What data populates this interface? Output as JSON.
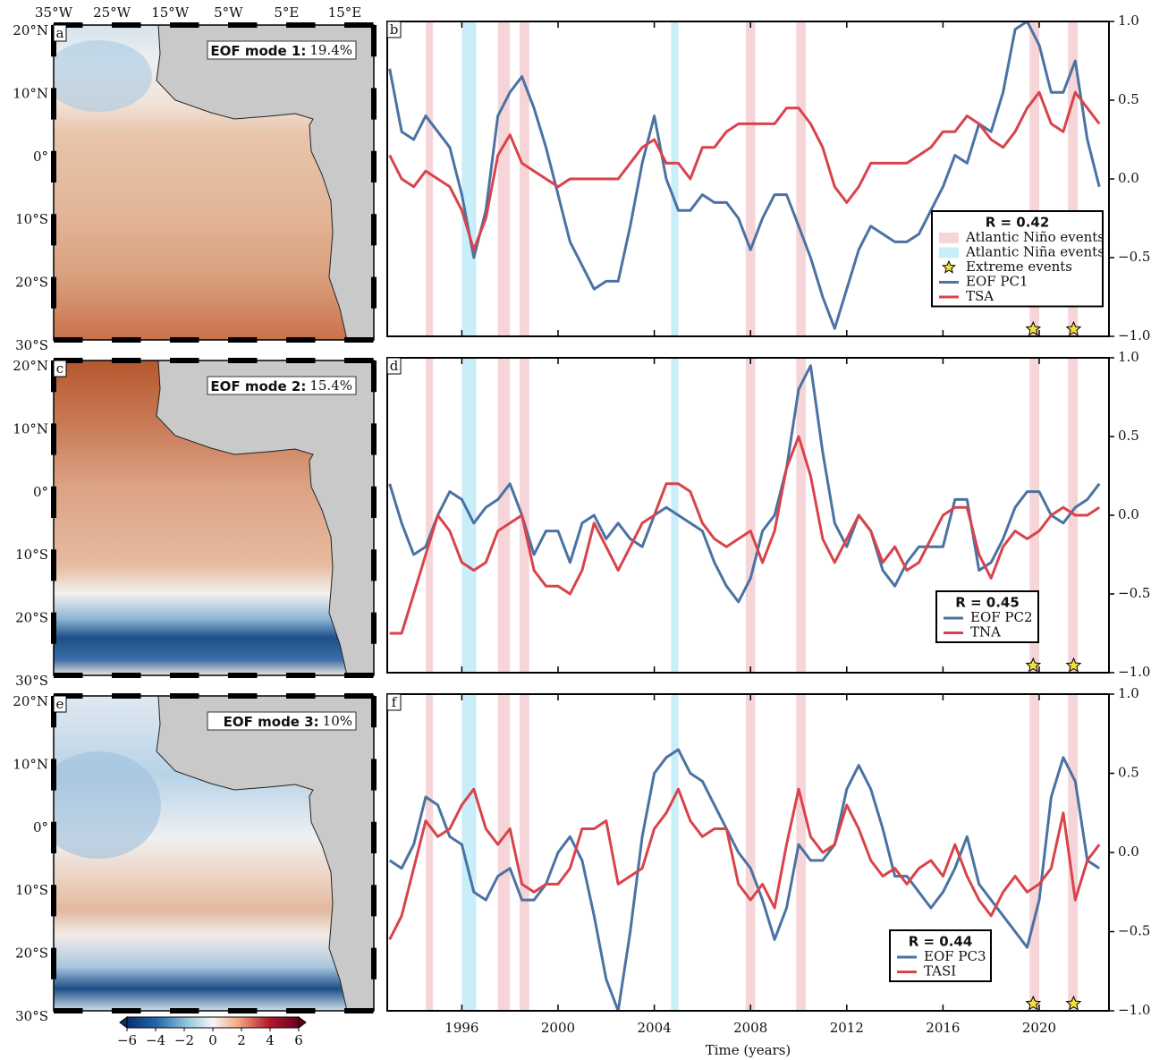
{
  "maps": {
    "lon_labels": [
      "35°W",
      "25°W",
      "15°W",
      "5°W",
      "5°E",
      "15°E"
    ],
    "lat_labels": [
      "20°N",
      "10°N",
      "0°",
      "10°S",
      "20°S",
      "30°S"
    ],
    "panels": [
      {
        "letter": "a",
        "title": "EOF mode 1:",
        "variance": "19.4%"
      },
      {
        "letter": "c",
        "title": "EOF mode 2:",
        "variance": "15.4%"
      },
      {
        "letter": "e",
        "title": "EOF mode 3:",
        "variance": "10%"
      }
    ],
    "colorbar": {
      "lim": [
        -6,
        6
      ],
      "ticks": [
        {
          "value": -6,
          "label": "−6"
        },
        {
          "value": -4,
          "label": "−4"
        },
        {
          "value": -2,
          "label": "−2"
        },
        0,
        2,
        4,
        6
      ]
    }
  },
  "events": {
    "nino": {
      "name": "Atlantic Niño events",
      "color": "#f6d5d8",
      "spans": [
        [
          1994.5,
          1994.8
        ],
        [
          1997.5,
          1998.0
        ],
        [
          1998.4,
          1998.8
        ],
        [
          2007.8,
          2008.2
        ],
        [
          2009.9,
          2010.3
        ],
        [
          2019.6,
          2020.0
        ],
        [
          2021.2,
          2021.6
        ]
      ]
    },
    "nina": {
      "name": "Atlantic Niña events",
      "color": "#c8eefa",
      "spans": [
        [
          1996.0,
          1996.6
        ],
        [
          2004.7,
          2005.0
        ]
      ]
    },
    "extreme": {
      "name": "Extreme events",
      "color": "#f5e03b",
      "x": [
        2019.75,
        2021.43
      ]
    }
  },
  "chart_data": [
    {
      "type": "line",
      "panel": "b",
      "annotation": "R = 0.42",
      "xlim": [
        1992.9,
        2022.9
      ],
      "ylim": [
        -1,
        1
      ],
      "xticks": [
        1996,
        2000,
        2004,
        2008,
        2012,
        2016,
        2020
      ],
      "yticks": [
        {
          "value": 1,
          "label": "1.0"
        },
        {
          "value": 0.5,
          "label": "0.5"
        },
        {
          "value": 0,
          "label": "0.0"
        },
        {
          "value": -0.5,
          "label": "−0.5"
        },
        {
          "value": -1,
          "label": "−1.0"
        }
      ],
      "x": [
        1993,
        1993.5,
        1994,
        1994.5,
        1995,
        1995.5,
        1996,
        1996.5,
        1997,
        1997.5,
        1998,
        1998.5,
        1999,
        1999.5,
        2000,
        2000.5,
        2001,
        2001.5,
        2002,
        2002.5,
        2003,
        2003.5,
        2004,
        2004.5,
        2005,
        2005.5,
        2006,
        2006.5,
        2007,
        2007.5,
        2008,
        2008.5,
        2009,
        2009.5,
        2010,
        2010.5,
        2011,
        2011.5,
        2012,
        2012.5,
        2013,
        2013.5,
        2014,
        2014.5,
        2015,
        2015.5,
        2016,
        2016.5,
        2017,
        2017.5,
        2018,
        2018.5,
        2019,
        2019.5,
        2020,
        2020.5,
        2021,
        2021.5,
        2022,
        2022.5
      ],
      "series": [
        {
          "name": "EOF PC1",
          "color": "#4a72a3",
          "values": [
            0.7,
            0.3,
            0.25,
            0.4,
            0.3,
            0.2,
            -0.1,
            -0.5,
            -0.2,
            0.4,
            0.55,
            0.65,
            0.45,
            0.2,
            -0.1,
            -0.4,
            -0.55,
            -0.7,
            -0.65,
            -0.65,
            -0.3,
            0.1,
            0.4,
            0.0,
            -0.2,
            -0.2,
            -0.1,
            -0.15,
            -0.15,
            -0.25,
            -0.45,
            -0.25,
            -0.1,
            -0.1,
            -0.3,
            -0.5,
            -0.75,
            -0.95,
            -0.7,
            -0.45,
            -0.3,
            -0.35,
            -0.4,
            -0.4,
            -0.35,
            -0.2,
            -0.05,
            0.15,
            0.1,
            0.35,
            0.3,
            0.55,
            0.95,
            1.0,
            0.85,
            0.55,
            0.55,
            0.75,
            0.25,
            -0.05
          ]
        },
        {
          "name": "TSA",
          "color": "#d9434b",
          "values": [
            0.15,
            0.0,
            -0.05,
            0.05,
            0.0,
            -0.05,
            -0.2,
            -0.45,
            -0.25,
            0.15,
            0.28,
            0.1,
            0.05,
            0.0,
            -0.05,
            0.0,
            0.0,
            0.0,
            0.0,
            0.0,
            0.1,
            0.2,
            0.25,
            0.1,
            0.1,
            0.0,
            0.2,
            0.2,
            0.3,
            0.35,
            0.35,
            0.35,
            0.35,
            0.45,
            0.45,
            0.35,
            0.2,
            -0.05,
            -0.15,
            -0.05,
            0.1,
            0.1,
            0.1,
            0.1,
            0.15,
            0.2,
            0.3,
            0.3,
            0.4,
            0.35,
            0.25,
            0.2,
            0.3,
            0.45,
            0.55,
            0.35,
            0.3,
            0.55,
            0.45,
            0.35
          ]
        }
      ]
    },
    {
      "type": "line",
      "panel": "d",
      "annotation": "R = 0.45",
      "xlim": [
        1992.9,
        2022.9
      ],
      "ylim": [
        -1,
        1
      ],
      "xticks": [
        1996,
        2000,
        2004,
        2008,
        2012,
        2016,
        2020
      ],
      "yticks": [
        {
          "value": 1,
          "label": "1.0"
        },
        {
          "value": 0.5,
          "label": "0.5"
        },
        {
          "value": 0,
          "label": "0.0"
        },
        {
          "value": -0.5,
          "label": "−0.5"
        },
        {
          "value": -1,
          "label": "−1.0"
        }
      ],
      "x": [
        1993,
        1993.5,
        1994,
        1994.5,
        1995,
        1995.5,
        1996,
        1996.5,
        1997,
        1997.5,
        1998,
        1998.5,
        1999,
        1999.5,
        2000,
        2000.5,
        2001,
        2001.5,
        2002,
        2002.5,
        2003,
        2003.5,
        2004,
        2004.5,
        2005,
        2005.5,
        2006,
        2006.5,
        2007,
        2007.5,
        2008,
        2008.5,
        2009,
        2009.5,
        2010,
        2010.5,
        2011,
        2011.5,
        2012,
        2012.5,
        2013,
        2013.5,
        2014,
        2014.5,
        2015,
        2015.5,
        2016,
        2016.5,
        2017,
        2017.5,
        2018,
        2018.5,
        2019,
        2019.5,
        2020,
        2020.5,
        2021,
        2021.5,
        2022,
        2022.5
      ],
      "series": [
        {
          "name": "EOF PC2",
          "color": "#4a72a3",
          "values": [
            0.2,
            -0.05,
            -0.25,
            -0.2,
            0.0,
            0.15,
            0.1,
            -0.05,
            0.05,
            0.1,
            0.2,
            0.0,
            -0.25,
            -0.1,
            -0.1,
            -0.3,
            -0.05,
            0.0,
            -0.15,
            -0.05,
            -0.15,
            -0.2,
            0.0,
            0.05,
            0.0,
            -0.05,
            -0.1,
            -0.3,
            -0.45,
            -0.55,
            -0.4,
            -0.1,
            0.0,
            0.3,
            0.8,
            0.95,
            0.4,
            -0.05,
            -0.2,
            0.0,
            -0.1,
            -0.35,
            -0.45,
            -0.3,
            -0.2,
            -0.2,
            -0.2,
            0.1,
            0.1,
            -0.35,
            -0.3,
            -0.15,
            0.05,
            0.15,
            0.15,
            0.0,
            -0.05,
            0.05,
            0.1,
            0.2
          ]
        },
        {
          "name": "TNA",
          "color": "#d9434b",
          "values": [
            -0.75,
            -0.75,
            -0.5,
            -0.25,
            0.0,
            -0.1,
            -0.3,
            -0.35,
            -0.3,
            -0.1,
            -0.05,
            0.0,
            -0.35,
            -0.45,
            -0.45,
            -0.5,
            -0.35,
            -0.05,
            -0.2,
            -0.35,
            -0.2,
            -0.05,
            0.0,
            0.2,
            0.2,
            0.15,
            -0.05,
            -0.15,
            -0.2,
            -0.15,
            -0.1,
            -0.3,
            -0.1,
            0.3,
            0.5,
            0.25,
            -0.15,
            -0.3,
            -0.15,
            0.0,
            -0.1,
            -0.3,
            -0.2,
            -0.35,
            -0.3,
            -0.15,
            0.0,
            0.05,
            0.05,
            -0.25,
            -0.4,
            -0.2,
            -0.1,
            -0.15,
            -0.1,
            0.0,
            0.05,
            0.0,
            0.0,
            0.05
          ]
        }
      ]
    },
    {
      "type": "line",
      "panel": "f",
      "annotation": "R = 0.44",
      "xlabel": "Time (years)",
      "xlim": [
        1992.9,
        2022.9
      ],
      "ylim": [
        -1,
        1
      ],
      "xticks": [
        1996,
        2000,
        2004,
        2008,
        2012,
        2016,
        2020
      ],
      "yticks": [
        {
          "value": 1,
          "label": "1.0"
        },
        {
          "value": 0.5,
          "label": "0.5"
        },
        {
          "value": 0,
          "label": "0.0"
        },
        {
          "value": -0.5,
          "label": "−0.5"
        },
        {
          "value": -1,
          "label": "−1.0"
        }
      ],
      "x": [
        1993,
        1993.5,
        1994,
        1994.5,
        1995,
        1995.5,
        1996,
        1996.5,
        1997,
        1997.5,
        1998,
        1998.5,
        1999,
        1999.5,
        2000,
        2000.5,
        2001,
        2001.5,
        2002,
        2002.5,
        2003,
        2003.5,
        2004,
        2004.5,
        2005,
        2005.5,
        2006,
        2006.5,
        2007,
        2007.5,
        2008,
        2008.5,
        2009,
        2009.5,
        2010,
        2010.5,
        2011,
        2011.5,
        2012,
        2012.5,
        2013,
        2013.5,
        2014,
        2014.5,
        2015,
        2015.5,
        2016,
        2016.5,
        2017,
        2017.5,
        2018,
        2018.5,
        2019,
        2019.5,
        2020,
        2020.5,
        2021,
        2021.5,
        2022,
        2022.5
      ],
      "series": [
        {
          "name": "EOF PC3",
          "color": "#4a72a3",
          "values": [
            -0.05,
            -0.1,
            0.05,
            0.35,
            0.3,
            0.1,
            0.05,
            -0.25,
            -0.3,
            -0.15,
            -0.1,
            -0.3,
            -0.3,
            -0.2,
            0.0,
            0.1,
            -0.05,
            -0.4,
            -0.8,
            -1.0,
            -0.5,
            0.1,
            0.5,
            0.6,
            0.65,
            0.5,
            0.45,
            0.3,
            0.15,
            0.0,
            -0.1,
            -0.3,
            -0.55,
            -0.35,
            0.05,
            -0.05,
            -0.05,
            0.05,
            0.4,
            0.55,
            0.4,
            0.15,
            -0.15,
            -0.15,
            -0.25,
            -0.35,
            -0.25,
            -0.1,
            0.1,
            -0.2,
            -0.3,
            -0.4,
            -0.5,
            -0.6,
            -0.3,
            0.35,
            0.6,
            0.45,
            -0.05,
            -0.1
          ]
        },
        {
          "name": "TASI",
          "color": "#d9434b",
          "values": [
            -0.55,
            -0.4,
            -0.1,
            0.2,
            0.1,
            0.15,
            0.3,
            0.4,
            0.15,
            0.05,
            0.15,
            -0.2,
            -0.25,
            -0.2,
            -0.2,
            -0.1,
            0.15,
            0.15,
            0.2,
            -0.2,
            -0.15,
            -0.1,
            0.15,
            0.25,
            0.4,
            0.2,
            0.1,
            0.15,
            0.15,
            -0.2,
            -0.3,
            -0.2,
            -0.35,
            0.05,
            0.4,
            0.1,
            0.0,
            0.05,
            0.3,
            0.15,
            -0.05,
            -0.15,
            -0.1,
            -0.2,
            -0.1,
            -0.05,
            -0.15,
            0.05,
            -0.15,
            -0.3,
            -0.4,
            -0.25,
            -0.15,
            -0.25,
            -0.2,
            -0.1,
            0.25,
            -0.3,
            -0.05,
            0.05
          ]
        }
      ]
    }
  ]
}
